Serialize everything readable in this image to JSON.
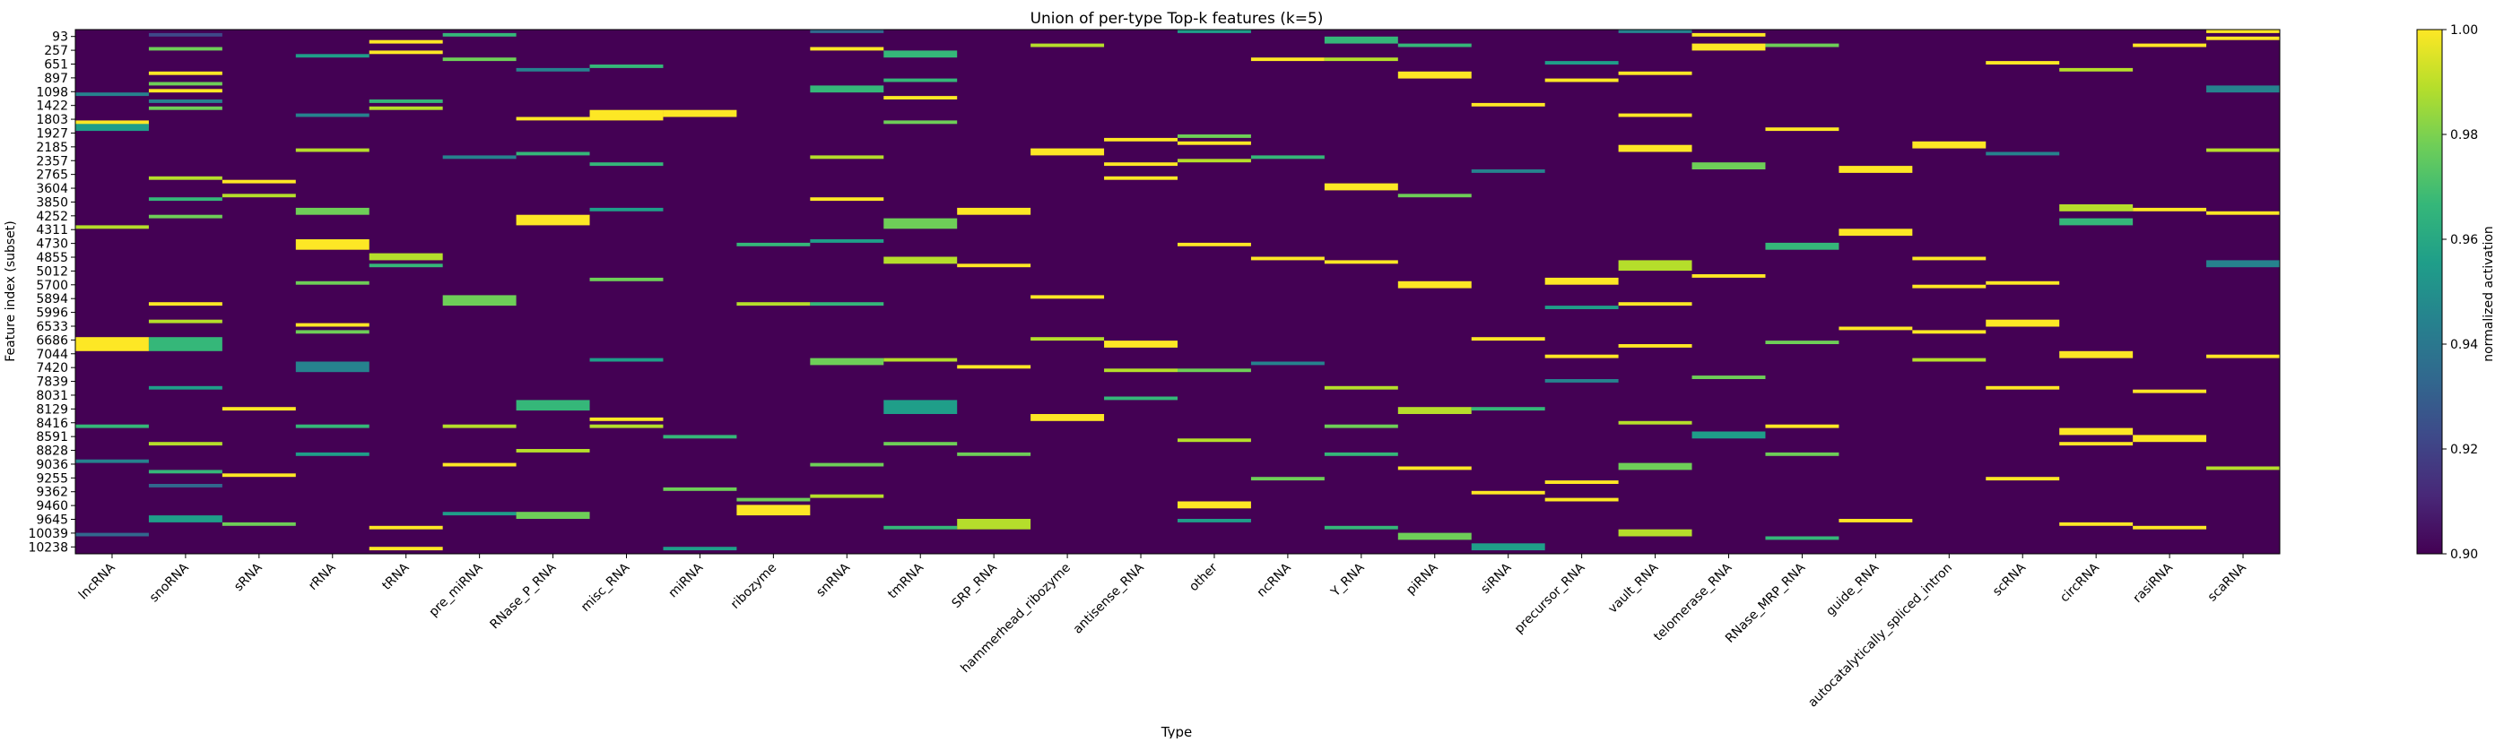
{
  "chart_data": {
    "type": "heatmap",
    "title": "Union of per-type Top-k features (k=5)",
    "xlabel": "Type",
    "ylabel": "Feature index (subset)",
    "colorbar": {
      "label": "normalized activation",
      "vmin": 0.9,
      "vmax": 1.0,
      "ticks": [
        "0.90",
        "0.92",
        "0.94",
        "0.96",
        "0.98",
        "1.00"
      ],
      "colormap": "viridis",
      "colors": [
        "#440154",
        "#482878",
        "#3e4989",
        "#31688e",
        "#26828e",
        "#1f9e89",
        "#35b779",
        "#6ece58",
        "#b5de2b",
        "#fde725"
      ]
    },
    "types": [
      "lncRNA",
      "snoRNA",
      "sRNA",
      "rRNA",
      "tRNA",
      "pre_miRNA",
      "RNase_P_RNA",
      "misc_RNA",
      "miRNA",
      "ribozyme",
      "snRNA",
      "tmRNA",
      "SRP_RNA",
      "hammerhead_ribozyme",
      "antisense_RNA",
      "other",
      "ncRNA",
      "Y_RNA",
      "piRNA",
      "siRNA",
      "precursor_RNA",
      "vault_RNA",
      "telomerase_RNA",
      "RNase_MRP_RNA",
      "guide_RNA",
      "autocatalytically_spliced_intron",
      "scRNA",
      "circRNA",
      "rasiRNA",
      "scaRNA"
    ],
    "ytick_labels": [
      "93",
      "257",
      "651",
      "897",
      "1098",
      "1422",
      "1803",
      "1927",
      "2185",
      "2357",
      "2765",
      "3604",
      "3850",
      "4252",
      "4311",
      "4730",
      "4855",
      "5012",
      "5700",
      "5894",
      "5996",
      "6533",
      "6686",
      "7044",
      "7420",
      "7839",
      "8031",
      "8129",
      "8416",
      "8591",
      "8828",
      "9036",
      "9255",
      "9362",
      "9460",
      "9645",
      "10039",
      "10238"
    ],
    "n_rows": 150,
    "highlights": [
      [
        0,
        26,
        28,
        1.0
      ],
      [
        0,
        88,
        92,
        1.0
      ],
      [
        0,
        27,
        29,
        0.96
      ],
      [
        0,
        56,
        57,
        0.99
      ],
      [
        0,
        18,
        19,
        0.94
      ],
      [
        0,
        113,
        114,
        0.97
      ],
      [
        0,
        123,
        124,
        0.95
      ],
      [
        0,
        144,
        145,
        0.93
      ],
      [
        1,
        1,
        2,
        0.92
      ],
      [
        1,
        5,
        6,
        0.98
      ],
      [
        1,
        12,
        13,
        1.0
      ],
      [
        1,
        15,
        16,
        0.98
      ],
      [
        1,
        17,
        18,
        1.0
      ],
      [
        1,
        20,
        21,
        0.95
      ],
      [
        1,
        22,
        23,
        0.98
      ],
      [
        1,
        42,
        43,
        0.99
      ],
      [
        1,
        48,
        49,
        0.97
      ],
      [
        1,
        53,
        54,
        0.98
      ],
      [
        1,
        78,
        79,
        1.0
      ],
      [
        1,
        83,
        84,
        0.99
      ],
      [
        1,
        88,
        92,
        0.97
      ],
      [
        1,
        102,
        103,
        0.96
      ],
      [
        1,
        118,
        119,
        0.99
      ],
      [
        1,
        126,
        127,
        0.97
      ],
      [
        1,
        130,
        131,
        0.93
      ],
      [
        1,
        139,
        141,
        0.96
      ],
      [
        2,
        43,
        44,
        1.0
      ],
      [
        2,
        47,
        48,
        0.99
      ],
      [
        2,
        108,
        109,
        1.0
      ],
      [
        2,
        127,
        128,
        1.0
      ],
      [
        2,
        141,
        142,
        0.98
      ],
      [
        3,
        7,
        8,
        0.96
      ],
      [
        3,
        24,
        25,
        0.95
      ],
      [
        3,
        34,
        35,
        0.99
      ],
      [
        3,
        51,
        53,
        0.98
      ],
      [
        3,
        60,
        63,
        1.0
      ],
      [
        3,
        72,
        73,
        0.98
      ],
      [
        3,
        84,
        85,
        1.0
      ],
      [
        3,
        86,
        87,
        0.98
      ],
      [
        3,
        95,
        98,
        0.95
      ],
      [
        3,
        113,
        114,
        0.97
      ],
      [
        3,
        121,
        122,
        0.96
      ],
      [
        4,
        3,
        4,
        1.0
      ],
      [
        4,
        6,
        7,
        1.0
      ],
      [
        4,
        20,
        21,
        0.97
      ],
      [
        4,
        22,
        23,
        0.99
      ],
      [
        4,
        64,
        66,
        0.99
      ],
      [
        4,
        67,
        68,
        0.97
      ],
      [
        4,
        142,
        143,
        1.0
      ],
      [
        4,
        148,
        149,
        1.0
      ],
      [
        5,
        1,
        2,
        0.97
      ],
      [
        5,
        8,
        9,
        0.98
      ],
      [
        5,
        36,
        37,
        0.95
      ],
      [
        5,
        76,
        79,
        0.98
      ],
      [
        5,
        113,
        114,
        0.99
      ],
      [
        5,
        124,
        125,
        1.0
      ],
      [
        5,
        138,
        139,
        0.96
      ],
      [
        6,
        11,
        12,
        0.95
      ],
      [
        6,
        25,
        26,
        1.0
      ],
      [
        6,
        35,
        36,
        0.97
      ],
      [
        6,
        53,
        56,
        1.0
      ],
      [
        6,
        106,
        109,
        0.97
      ],
      [
        6,
        120,
        121,
        0.99
      ],
      [
        6,
        138,
        140,
        0.98
      ],
      [
        7,
        10,
        11,
        0.97
      ],
      [
        7,
        23,
        26,
        1.0
      ],
      [
        7,
        38,
        39,
        0.97
      ],
      [
        7,
        51,
        52,
        0.96
      ],
      [
        7,
        71,
        72,
        0.98
      ],
      [
        7,
        94,
        95,
        0.96
      ],
      [
        7,
        111,
        112,
        1.0
      ],
      [
        7,
        113,
        114,
        0.99
      ],
      [
        8,
        23,
        25,
        1.0
      ],
      [
        8,
        116,
        117,
        0.97
      ],
      [
        8,
        131,
        132,
        0.98
      ],
      [
        8,
        148,
        149,
        0.96
      ],
      [
        9,
        61,
        62,
        0.97
      ],
      [
        9,
        78,
        79,
        0.99
      ],
      [
        9,
        136,
        139,
        1.0
      ],
      [
        9,
        134,
        135,
        0.98
      ],
      [
        10,
        0,
        1,
        0.93
      ],
      [
        10,
        5,
        6,
        1.0
      ],
      [
        10,
        16,
        18,
        0.97
      ],
      [
        10,
        36,
        37,
        0.99
      ],
      [
        10,
        48,
        49,
        1.0
      ],
      [
        10,
        60,
        61,
        0.96
      ],
      [
        10,
        78,
        79,
        0.97
      ],
      [
        10,
        94,
        96,
        0.98
      ],
      [
        10,
        124,
        125,
        0.98
      ],
      [
        10,
        133,
        134,
        0.99
      ],
      [
        11,
        6,
        8,
        0.97
      ],
      [
        11,
        14,
        15,
        0.97
      ],
      [
        11,
        19,
        20,
        1.0
      ],
      [
        11,
        26,
        27,
        0.98
      ],
      [
        11,
        54,
        57,
        0.98
      ],
      [
        11,
        65,
        67,
        0.99
      ],
      [
        11,
        94,
        95,
        0.99
      ],
      [
        11,
        106,
        110,
        0.96
      ],
      [
        11,
        118,
        119,
        0.98
      ],
      [
        11,
        142,
        143,
        0.97
      ],
      [
        12,
        51,
        53,
        1.0
      ],
      [
        12,
        67,
        68,
        1.0
      ],
      [
        12,
        96,
        97,
        1.0
      ],
      [
        12,
        140,
        143,
        0.99
      ],
      [
        12,
        121,
        122,
        0.98
      ],
      [
        13,
        4,
        5,
        0.99
      ],
      [
        13,
        34,
        36,
        1.0
      ],
      [
        13,
        76,
        77,
        1.0
      ],
      [
        13,
        88,
        89,
        0.99
      ],
      [
        13,
        110,
        112,
        1.0
      ],
      [
        14,
        31,
        32,
        1.0
      ],
      [
        14,
        38,
        39,
        1.0
      ],
      [
        14,
        42,
        43,
        1.0
      ],
      [
        14,
        89,
        91,
        1.0
      ],
      [
        14,
        97,
        98,
        0.99
      ],
      [
        14,
        105,
        106,
        0.97
      ],
      [
        15,
        0,
        1,
        0.96
      ],
      [
        15,
        30,
        31,
        0.98
      ],
      [
        15,
        32,
        33,
        1.0
      ],
      [
        15,
        37,
        38,
        0.99
      ],
      [
        15,
        61,
        62,
        1.0
      ],
      [
        15,
        97,
        98,
        0.98
      ],
      [
        15,
        117,
        118,
        0.99
      ],
      [
        15,
        135,
        137,
        1.0
      ],
      [
        15,
        140,
        141,
        0.96
      ],
      [
        16,
        8,
        9,
        1.0
      ],
      [
        16,
        36,
        37,
        0.97
      ],
      [
        16,
        65,
        66,
        1.0
      ],
      [
        16,
        95,
        96,
        0.95
      ],
      [
        16,
        128,
        129,
        0.98
      ],
      [
        17,
        2,
        4,
        0.97
      ],
      [
        17,
        8,
        9,
        0.99
      ],
      [
        17,
        44,
        46,
        1.0
      ],
      [
        17,
        66,
        67,
        1.0
      ],
      [
        17,
        102,
        103,
        0.99
      ],
      [
        17,
        113,
        114,
        0.98
      ],
      [
        17,
        121,
        122,
        0.97
      ],
      [
        17,
        142,
        143,
        0.97
      ],
      [
        18,
        4,
        5,
        0.97
      ],
      [
        18,
        12,
        14,
        1.0
      ],
      [
        18,
        47,
        48,
        0.98
      ],
      [
        18,
        72,
        74,
        1.0
      ],
      [
        18,
        108,
        110,
        0.99
      ],
      [
        18,
        125,
        126,
        1.0
      ],
      [
        18,
        144,
        146,
        0.98
      ],
      [
        19,
        21,
        22,
        1.0
      ],
      [
        19,
        40,
        41,
        0.95
      ],
      [
        19,
        88,
        89,
        1.0
      ],
      [
        19,
        108,
        109,
        0.97
      ],
      [
        19,
        132,
        133,
        1.0
      ],
      [
        19,
        147,
        149,
        0.96
      ],
      [
        20,
        9,
        10,
        0.96
      ],
      [
        20,
        14,
        15,
        1.0
      ],
      [
        20,
        71,
        73,
        1.0
      ],
      [
        20,
        79,
        80,
        0.96
      ],
      [
        20,
        93,
        94,
        1.0
      ],
      [
        20,
        129,
        130,
        1.0
      ],
      [
        20,
        134,
        135,
        1.0
      ],
      [
        20,
        100,
        101,
        0.95
      ],
      [
        21,
        0,
        1,
        0.94
      ],
      [
        21,
        12,
        13,
        1.0
      ],
      [
        21,
        24,
        25,
        1.0
      ],
      [
        21,
        33,
        35,
        1.0
      ],
      [
        21,
        66,
        69,
        0.99
      ],
      [
        21,
        78,
        79,
        1.0
      ],
      [
        21,
        90,
        91,
        1.0
      ],
      [
        21,
        112,
        113,
        0.99
      ],
      [
        21,
        124,
        126,
        0.98
      ],
      [
        21,
        143,
        145,
        0.99
      ],
      [
        22,
        1,
        2,
        1.0
      ],
      [
        22,
        4,
        6,
        1.0
      ],
      [
        22,
        38,
        40,
        0.98
      ],
      [
        22,
        70,
        71,
        1.0
      ],
      [
        22,
        99,
        100,
        0.98
      ],
      [
        22,
        115,
        117,
        0.96
      ],
      [
        23,
        4,
        5,
        0.98
      ],
      [
        23,
        28,
        29,
        1.0
      ],
      [
        23,
        61,
        63,
        0.97
      ],
      [
        23,
        89,
        90,
        0.98
      ],
      [
        23,
        113,
        114,
        1.0
      ],
      [
        23,
        121,
        122,
        0.98
      ],
      [
        23,
        145,
        146,
        0.97
      ],
      [
        24,
        39,
        41,
        1.0
      ],
      [
        24,
        57,
        59,
        1.0
      ],
      [
        24,
        85,
        86,
        1.0
      ],
      [
        24,
        140,
        141,
        1.0
      ],
      [
        25,
        32,
        34,
        1.0
      ],
      [
        25,
        65,
        66,
        1.0
      ],
      [
        25,
        73,
        74,
        1.0
      ],
      [
        25,
        86,
        87,
        1.0
      ],
      [
        25,
        94,
        95,
        0.99
      ],
      [
        26,
        9,
        10,
        1.0
      ],
      [
        26,
        35,
        36,
        0.95
      ],
      [
        26,
        72,
        73,
        1.0
      ],
      [
        26,
        83,
        85,
        1.0
      ],
      [
        26,
        102,
        103,
        1.0
      ],
      [
        26,
        128,
        129,
        1.0
      ],
      [
        27,
        11,
        12,
        0.99
      ],
      [
        27,
        50,
        52,
        0.99
      ],
      [
        27,
        54,
        56,
        0.97
      ],
      [
        27,
        92,
        94,
        1.0
      ],
      [
        27,
        114,
        116,
        1.0
      ],
      [
        27,
        118,
        119,
        1.0
      ],
      [
        27,
        141,
        142,
        1.0
      ],
      [
        28,
        4,
        5,
        1.0
      ],
      [
        28,
        51,
        52,
        1.0
      ],
      [
        28,
        103,
        104,
        1.0
      ],
      [
        28,
        116,
        118,
        1.0
      ],
      [
        28,
        142,
        143,
        1.0
      ],
      [
        29,
        0,
        1,
        1.0
      ],
      [
        29,
        2,
        3,
        1.0
      ],
      [
        29,
        16,
        18,
        0.95
      ],
      [
        29,
        34,
        35,
        0.99
      ],
      [
        29,
        52,
        53,
        1.0
      ],
      [
        29,
        66,
        68,
        0.94
      ],
      [
        29,
        93,
        94,
        1.0
      ],
      [
        29,
        125,
        126,
        0.99
      ]
    ]
  }
}
